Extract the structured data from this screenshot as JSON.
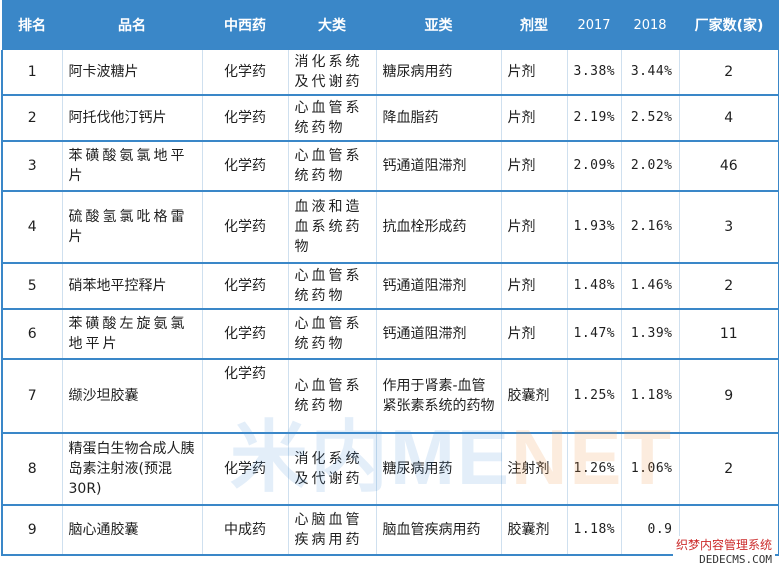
{
  "headers": [
    "排名",
    "品名",
    "中西药",
    "大类",
    "亚类",
    "剂型",
    "2017",
    "2018",
    "厂家数(家)"
  ],
  "rows": [
    {
      "rank": "1",
      "name": "阿卡波糖片",
      "type": "化学药",
      "category": "消化系统及代谢药",
      "subcategory": "糖尿病用药",
      "form": "片剂",
      "y2017": "3.38%",
      "y2018": "3.44%",
      "makers": "2"
    },
    {
      "rank": "2",
      "name": "阿托伐他汀钙片",
      "type": "化学药",
      "category": "心血管系统药物",
      "subcategory": "降血脂药",
      "form": "片剂",
      "y2017": "2.19%",
      "y2018": "2.52%",
      "makers": "4"
    },
    {
      "rank": "3",
      "name": "苯磺酸氨氯地平片",
      "type": "化学药",
      "category": "心血管系统药物",
      "subcategory": "钙通道阻滞剂",
      "form": "片剂",
      "y2017": "2.09%",
      "y2018": "2.02%",
      "makers": "46"
    },
    {
      "rank": "4",
      "name": "硫酸氢氯吡格雷片",
      "type": "化学药",
      "category": "血液和造血系统药物",
      "subcategory": "抗血栓形成药",
      "form": "片剂",
      "y2017": "1.93%",
      "y2018": "2.16%",
      "makers": "3"
    },
    {
      "rank": "5",
      "name": "硝苯地平控释片",
      "type": "化学药",
      "category": "心血管系统药物",
      "subcategory": "钙通道阻滞剂",
      "form": "片剂",
      "y2017": "1.48%",
      "y2018": "1.46%",
      "makers": "2"
    },
    {
      "rank": "6",
      "name": "苯磺酸左旋氨氯地平片",
      "type": "化学药",
      "category": "心血管系统药物",
      "subcategory": "钙通道阻滞剂",
      "form": "片剂",
      "y2017": "1.47%",
      "y2018": "1.39%",
      "makers": "11"
    },
    {
      "rank": "7",
      "name": "缬沙坦胶囊",
      "type": "化学药",
      "category": "心血管系统药物",
      "subcategory": "作用于肾素-血管紧张素系统的药物",
      "form": "胶囊剂",
      "y2017": "1.25%",
      "y2018": "1.18%",
      "makers": "9"
    },
    {
      "rank": "8",
      "name": "精蛋白生物合成人胰岛素注射液(预混 30R)",
      "type": "化学药",
      "category": "消化系统及代谢药",
      "subcategory": "糖尿病用药",
      "form": "注射剂",
      "y2017": "1.26%",
      "y2018": "1.06%",
      "makers": "2"
    },
    {
      "rank": "9",
      "name": "脑心通胶囊",
      "type": "中成药",
      "category": "心脑血管疾病用药",
      "subcategory": "脑血管疾病用药",
      "form": "胶囊剂",
      "y2017": "1.18%",
      "y2018": "0.9",
      "makers": ""
    }
  ],
  "watermark": {
    "cn": "米内",
    "en_a": "ME",
    "en_b": "NET"
  },
  "site_badge": {
    "line1": "织梦内容管理系统",
    "line2": "DEDECMS.COM"
  }
}
